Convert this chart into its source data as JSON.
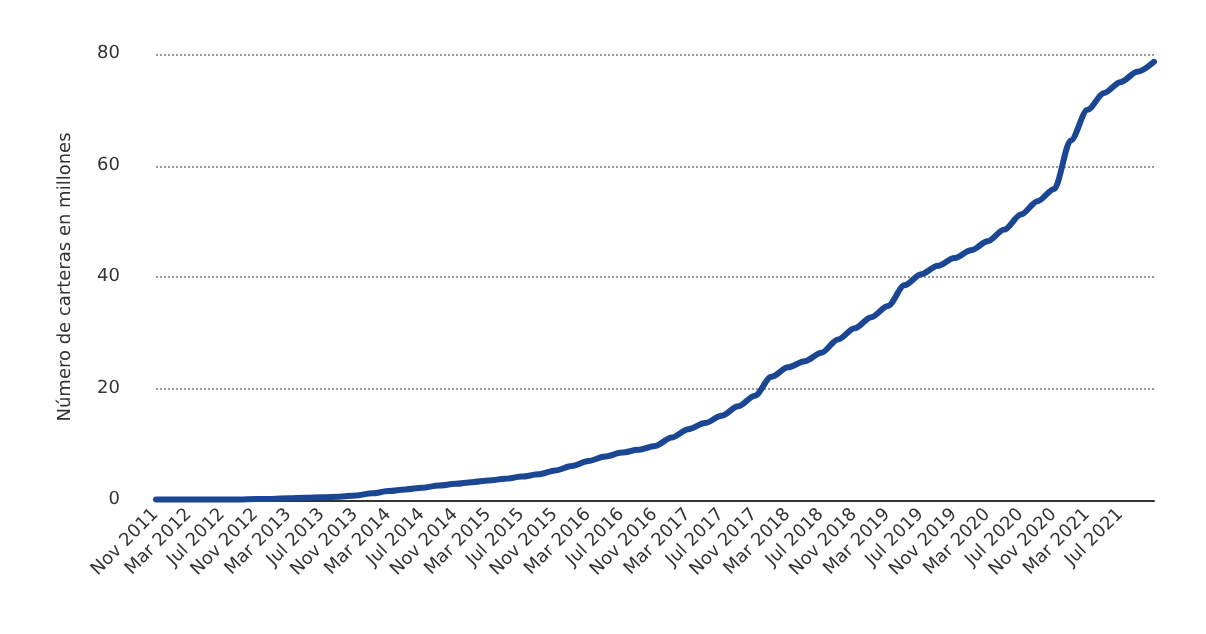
{
  "chart_data": {
    "type": "line",
    "ylabel": "Número de carteras en millones",
    "categories": [
      "Nov 2011",
      null,
      "Mar 2012",
      null,
      "Jul 2012",
      null,
      "Nov 2012",
      null,
      "Mar 2013",
      null,
      "Jul 2013",
      null,
      "Nov 2013",
      null,
      "Mar 2014",
      null,
      "Jul 2014",
      null,
      "Nov 2014",
      null,
      "Mar 2015",
      null,
      "Jul 2015",
      null,
      "Nov 2015",
      null,
      "Mar 2016",
      null,
      "Jul 2016",
      null,
      "Nov 2016",
      null,
      "Mar 2017",
      null,
      "Jul 2017",
      null,
      "Nov 2017",
      null,
      "Mar 2018",
      null,
      "Jul 2018",
      null,
      "Nov 2018",
      null,
      "Mar 2019",
      null,
      "Jul 2019",
      null,
      "Nov 2019",
      null,
      "Mar 2020",
      null,
      "Jul 2020",
      null,
      "Nov 2020",
      null,
      "Mar 2021",
      null,
      "Jul 2021",
      null,
      null
    ],
    "series": [
      {
        "color": "#1a4693",
        "values": [
          0.1,
          0.1,
          0.1,
          0.1,
          0.1,
          0.1,
          0.2,
          0.2,
          0.3,
          0.4,
          0.5,
          0.6,
          0.8,
          1.2,
          1.6,
          1.9,
          2.2,
          2.6,
          2.9,
          3.2,
          3.5,
          3.8,
          4.2,
          4.6,
          5.3,
          6.1,
          7.0,
          7.8,
          8.5,
          9.0,
          9.7,
          11.2,
          12.7,
          13.8,
          15.1,
          16.8,
          18.7,
          22.1,
          23.8,
          24.9,
          26.4,
          28.8,
          30.8,
          32.8,
          34.8,
          38.5,
          40.5,
          42.0,
          43.4,
          44.8,
          46.4,
          48.5,
          51.2,
          53.6,
          55.8,
          64.5,
          70,
          73,
          75,
          76.8,
          78.6
        ]
      }
    ],
    "ylim": [
      0,
      80
    ],
    "yticks": [
      0,
      20,
      40,
      60,
      80
    ],
    "grid": "y",
    "marker": "none",
    "line_style": "solid"
  }
}
